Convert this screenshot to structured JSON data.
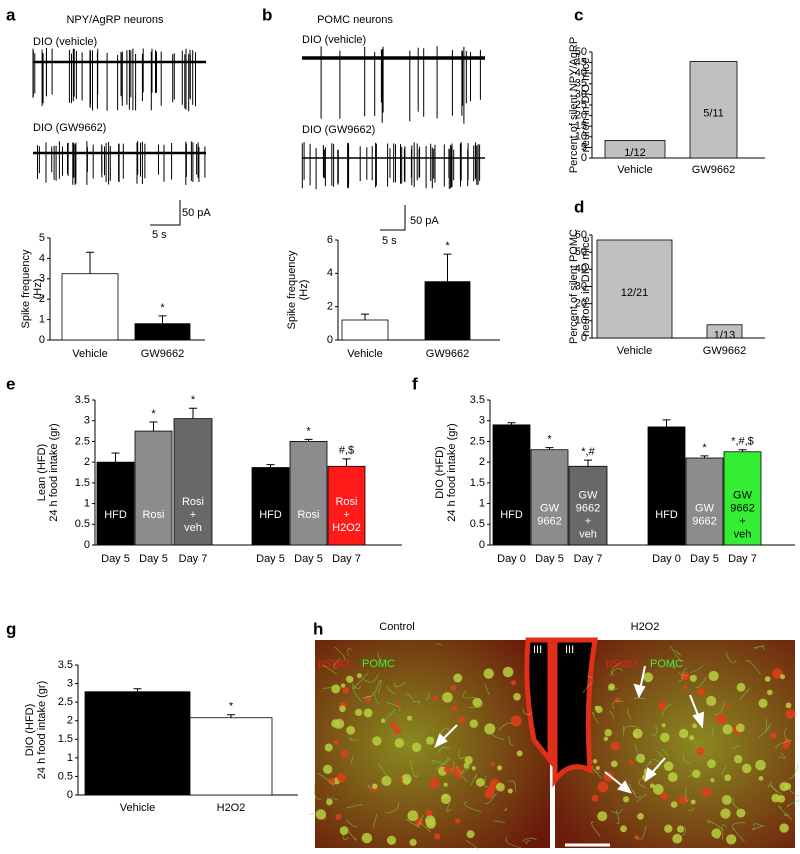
{
  "chart_data": [
    {
      "type": "bar",
      "panel": "a",
      "title": "NPY/AgRP neurons",
      "traces": [
        "DIO (vehicle)",
        "DIO (GW9662)"
      ],
      "scale_bar": [
        "50 pA",
        "5 s"
      ],
      "ylabel": [
        "Spike frequency",
        "(Hz)"
      ],
      "categories": [
        "Vehicle",
        "GW9662"
      ],
      "values": [
        3.25,
        0.8
      ],
      "errors": [
        1.05,
        0.38
      ],
      "colors": [
        "#ffffff",
        "#000000"
      ],
      "markers": [
        null,
        "*"
      ],
      "ylim": [
        0,
        5
      ],
      "yticks": [
        0,
        1,
        2,
        3,
        4,
        5
      ]
    },
    {
      "type": "bar",
      "panel": "b",
      "title": "POMC neurons",
      "traces": [
        "DIO (vehicle)",
        "DIO (GW9662)"
      ],
      "scale_bar": [
        "50 pA",
        "5 s"
      ],
      "ylabel": [
        "Spike frequency",
        "(Hz)"
      ],
      "categories": [
        "Vehicle",
        "GW9662"
      ],
      "values": [
        1.2,
        3.5
      ],
      "errors": [
        0.35,
        1.65
      ],
      "colors": [
        "#ffffff",
        "#000000"
      ],
      "markers": [
        null,
        "*"
      ],
      "ylim": [
        0,
        6
      ],
      "yticks": [
        0,
        2,
        4,
        6
      ]
    },
    {
      "type": "bar",
      "panel": "c",
      "ylabel": [
        "Percent of silent NPY/AgRP",
        "neuron in DIO mice"
      ],
      "categories": [
        "Vehicle",
        "GW9662"
      ],
      "values": [
        8.3,
        45.5
      ],
      "value_labels": [
        "1/12",
        "5/11"
      ],
      "colors": [
        "#c0c0c0",
        "#c0c0c0"
      ],
      "ylim": [
        0,
        50
      ],
      "yticks": [
        0,
        5,
        10,
        15,
        20,
        25,
        30,
        35,
        40,
        45,
        50
      ]
    },
    {
      "type": "bar",
      "panel": "d",
      "ylabel": [
        "Percent of silent POMC",
        "neurons in DIO mice"
      ],
      "categories": [
        "Vehicle",
        "GW9662"
      ],
      "values": [
        57.1,
        7.7
      ],
      "value_labels": [
        "12/21",
        "1/13"
      ],
      "colors": [
        "#c0c0c0",
        "#c0c0c0"
      ],
      "ylim": [
        0,
        60
      ],
      "yticks": [
        0,
        10,
        20,
        30,
        40,
        50,
        60
      ]
    },
    {
      "type": "bar",
      "panel": "e",
      "ylabel": [
        "Lean (HFD)",
        "24 h food intake (gr)"
      ],
      "categories": [
        "Day 5",
        "Day 5",
        "Day 7",
        "Day 5",
        "Day 5",
        "Day 7"
      ],
      "bar_labels": [
        [
          "HFD"
        ],
        [
          "Rosi"
        ],
        [
          "Rosi",
          "+",
          "veh"
        ],
        [
          "HFD"
        ],
        [
          "Rosi"
        ],
        [
          "Rosi",
          "+",
          "H2O2"
        ]
      ],
      "values": [
        2.0,
        2.75,
        3.05,
        1.87,
        2.5,
        1.9
      ],
      "errors": [
        0.22,
        0.22,
        0.25,
        0.07,
        0.05,
        0.18
      ],
      "colors": [
        "#000000",
        "#8c8c8c",
        "#686868",
        "#000000",
        "#8c8c8c",
        "#ff1a1a"
      ],
      "markers": [
        null,
        "*",
        "*",
        null,
        "*",
        "#,$"
      ],
      "ylim": [
        0,
        3.5
      ],
      "yticks": [
        0,
        0.5,
        1,
        1.5,
        2,
        2.5,
        3,
        3.5
      ]
    },
    {
      "type": "bar",
      "panel": "f",
      "ylabel": [
        "DIO (HFD)",
        "24 h food intake (gr)"
      ],
      "categories": [
        "Day 0",
        "Day 5",
        "Day 7",
        "Day 0",
        "Day 5",
        "Day 7"
      ],
      "bar_labels": [
        [
          "HFD"
        ],
        [
          "GW",
          "9662"
        ],
        [
          "GW",
          "9662",
          "+",
          "veh"
        ],
        [
          "HFD"
        ],
        [
          "GW",
          "9662"
        ],
        [
          "GW",
          "9662",
          "+",
          "veh"
        ]
      ],
      "values": [
        2.9,
        2.3,
        1.9,
        2.85,
        2.1,
        2.25
      ],
      "errors": [
        0.05,
        0.05,
        0.15,
        0.17,
        0.05,
        0.05
      ],
      "colors": [
        "#000000",
        "#8c8c8c",
        "#686868",
        "#000000",
        "#8c8c8c",
        "#33ee33"
      ],
      "markers": [
        null,
        "*",
        "*,#",
        null,
        "*",
        "*,#,$"
      ],
      "ylim": [
        0,
        3.5
      ],
      "yticks": [
        0,
        0.5,
        1,
        1.5,
        2,
        2.5,
        3,
        3.5
      ]
    },
    {
      "type": "bar",
      "panel": "g",
      "ylabel": [
        "DIO (HFD)",
        "24 h food intake (gr)"
      ],
      "categories": [
        "Vehicle",
        "H2O2"
      ],
      "values": [
        2.78,
        2.08
      ],
      "errors": [
        0.08,
        0.08
      ],
      "colors": [
        "#000000",
        "#ffffff"
      ],
      "markers": [
        null,
        "*"
      ],
      "ylim": [
        0,
        3.5
      ],
      "yticks": [
        0,
        0.5,
        1,
        1.5,
        2,
        2.5,
        3,
        3.5
      ]
    }
  ],
  "micrographs": {
    "panel": "h",
    "titles": [
      "Control",
      "H2O2"
    ],
    "stain_red": "pStat3",
    "stain_green": "POMC",
    "ventricle": "III"
  }
}
